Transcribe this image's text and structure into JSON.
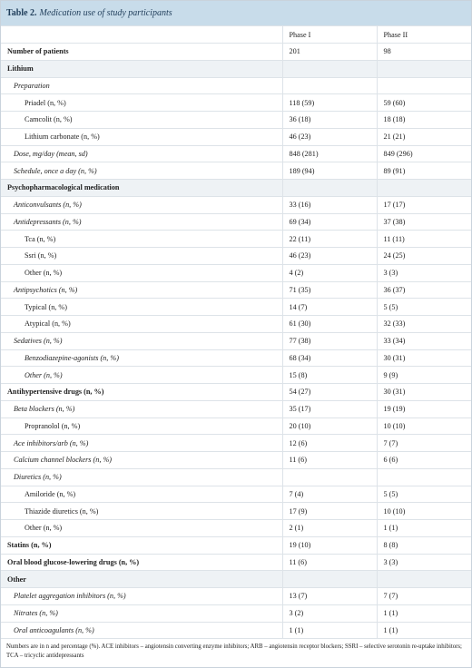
{
  "title": {
    "label": "Table 2.",
    "text": "Medication use of study participants"
  },
  "table": {
    "columns": [
      "Phase I",
      "Phase II"
    ],
    "rows": [
      [
        "Number of patients",
        "201",
        "98"
      ],
      [
        "Lithium"
      ],
      [
        "Preparation"
      ],
      [
        "Priadel (n, %)",
        "118 (59)",
        "59 (60)"
      ],
      [
        "Camcolit (n, %)",
        "36 (18)",
        "18 (18)"
      ],
      [
        "Lithium carbonate (n, %)",
        "46 (23)",
        "21 (21)"
      ],
      [
        "Dose, mg/day (mean, sd)",
        "848 (281)",
        "849 (296)"
      ],
      [
        "Schedule, once a day (n, %)",
        "189 (94)",
        "89 (91)"
      ],
      [
        "Psychopharmacological medication"
      ],
      [
        "Anticonvulsants (n, %)",
        "33 (16)",
        "17 (17)"
      ],
      [
        "Antidepressants (n, %)",
        "69 (34)",
        "37 (38)"
      ],
      [
        "Tca (n, %)",
        "22 (11)",
        "11 (11)"
      ],
      [
        "Ssri (n, %)",
        "46 (23)",
        "24 (25)"
      ],
      [
        "Other (n, %)",
        "4 (2)",
        "3 (3)"
      ],
      [
        "Antipsychotics (n, %)",
        "71 (35)",
        "36 (37)"
      ],
      [
        "Typical (n, %)",
        "14 (7)",
        "5 (5)"
      ],
      [
        "Atypical (n, %)",
        "61 (30)",
        "32 (33)"
      ],
      [
        "Sedatives (n, %)",
        "77 (38)",
        "33 (34)"
      ],
      [
        "Benzodiazepine-agonists (n, %)",
        "68 (34)",
        "30 (31)"
      ],
      [
        "Other (n, %)",
        "15 (8)",
        "9 (9)"
      ],
      [
        "Antihypertensive drugs (n, %)",
        "54 (27)",
        "30 (31)"
      ],
      [
        "Beta blockers (n, %)",
        "35 (17)",
        "19 (19)"
      ],
      [
        "Propranolol (n, %)",
        "20 (10)",
        "10 (10)"
      ],
      [
        "Ace inhibitors/arb (n, %)",
        "12 (6)",
        "7 (7)"
      ],
      [
        "Calcium channel blockers (n, %)",
        "11 (6)",
        "6 (6)"
      ],
      [
        "Diuretics (n, %)"
      ],
      [
        "Amiloride (n, %)",
        "7 (4)",
        "5 (5)"
      ],
      [
        "Thiazide diuretics (n, %)",
        "17 (9)",
        "10 (10)"
      ],
      [
        "Other (n, %)",
        "2 (1)",
        "1 (1)"
      ],
      [
        "Statins (n, %)",
        "19 (10)",
        "8 (8)"
      ],
      [
        "Oral blood glucose-lowering drugs (n, %)",
        "11 (6)",
        "3 (3)"
      ],
      [
        "Other"
      ],
      [
        "Platelet aggregation inhibitors (n, %)",
        "13 (7)",
        "7 (7)"
      ],
      [
        "Nitrates (n, %)",
        "3 (2)",
        "1 (1)"
      ],
      [
        "Oral anticoagulants (n, %)",
        "1 (1)",
        "1 (1)"
      ]
    ]
  },
  "footnote": "Numbers are in n and percentage (%). ACE inhibitors – angiotensin converting enzyme inhibitors; ARB – angiotensin receptor blockers; SSRI – selective serotonin re-uptake inhibitors; TCA – tricyclic antidepressants"
}
